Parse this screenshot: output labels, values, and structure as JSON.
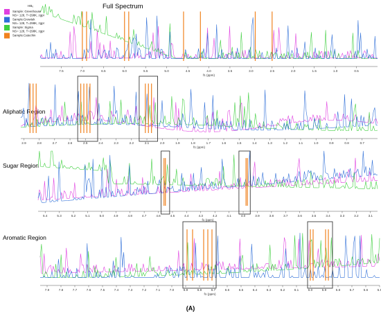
{
  "figure_label": "(A)",
  "legend": {
    "header": "HB₀",
    "entries": [
      {
        "lines": [
          "Sample: Greenhouse",
          "NS= 128, T=298K, zgpr"
        ],
        "color": "#e040e0"
      },
      {
        "lines": [
          "Sample:Growtek",
          "NS= 128, T=298K, zgpr"
        ],
        "color": "#2f6fd8"
      },
      {
        "lines": [
          "Sample: Sigma",
          "NS= 128, T=298K, zgpr"
        ],
        "color": "#3fcf3f"
      },
      {
        "lines": [
          "Sample:Catechin"
        ],
        "color": "#f0821e"
      }
    ]
  },
  "colors": {
    "greenhouse": "#e040e0",
    "growtek": "#2f6fd8",
    "sigma": "#3fcf3f",
    "catechin": "#f0821e",
    "axis": "#555555",
    "highlight_box": "#222222"
  },
  "chart_data": [
    {
      "type": "line",
      "title": "Full Spectrum",
      "xlabel": "f1 (ppm)",
      "x_reversed": true,
      "xlim": [
        8.0,
        0.0
      ],
      "tick_labels": [
        "7.5",
        "7.0",
        "6.5",
        "6.0",
        "5.5",
        "5.0",
        "4.5",
        "4.0",
        "3.5",
        "3.0",
        "2.5",
        "2.0",
        "1.5",
        "1.0",
        "0.5"
      ],
      "series": [
        "Greenhouse",
        "Growtek",
        "Sigma",
        "Catechin"
      ],
      "catechin_peaks": [
        7.0,
        6.9,
        6.0,
        5.9,
        4.6,
        4.2,
        2.9,
        2.5
      ]
    },
    {
      "type": "line",
      "title": "Aliphatic Region",
      "xlabel": "f1 (ppm)",
      "x_reversed": true,
      "xlim": [
        2.92,
        0.6
      ],
      "tick_labels": [
        "2.9",
        "2.8",
        "2.7",
        "2.6",
        "2.5",
        "2.4",
        "2.3",
        "2.2",
        "2.1",
        "2.0",
        "1.9",
        "1.8",
        "1.7",
        "1.6",
        "1.5",
        "1.4",
        "1.3",
        "1.2",
        "1.1",
        "1.0",
        "0.9",
        "0.8",
        "0.7"
      ],
      "highlight_boxes": [
        [
          2.55,
          2.42
        ],
        [
          2.15,
          2.03
        ]
      ],
      "catechin_peaks": [
        2.86,
        2.84,
        2.82,
        2.53,
        2.51,
        2.49,
        2.47,
        2.11,
        2.09,
        2.07
      ]
    },
    {
      "type": "line",
      "title": "Sugar Region",
      "xlabel": "f1 (ppm)",
      "x_reversed": true,
      "xlim": [
        5.45,
        3.05
      ],
      "tick_labels": [
        "5.4",
        "5.3",
        "5.2",
        "5.1",
        "5.0",
        "4.9",
        "4.8",
        "4.7",
        "4.6",
        "4.5",
        "4.4",
        "4.3",
        "4.2",
        "4.1",
        "4.0",
        "3.9",
        "3.8",
        "3.7",
        "3.6",
        "3.5",
        "3.4",
        "3.3",
        "3.2",
        "3.1"
      ],
      "highlight_boxes": [
        [
          4.58,
          4.52
        ],
        [
          4.03,
          3.95
        ]
      ],
      "catechin_peaks": [
        4.56,
        4.55,
        3.98,
        3.97
      ]
    },
    {
      "type": "line",
      "title": "Aromatic Region",
      "xlabel": "f1 (ppm)",
      "x_reversed": true,
      "xlim": [
        7.95,
        5.5
      ],
      "tick_labels": [
        "7.9",
        "7.8",
        "7.7",
        "7.6",
        "7.5",
        "7.4",
        "7.3",
        "7.2",
        "7.1",
        "7.0",
        "6.9",
        "6.8",
        "6.7",
        "6.6",
        "6.5",
        "6.4",
        "6.3",
        "6.2",
        "6.1",
        "6.0",
        "5.9",
        "5.8",
        "5.7",
        "5.6",
        "5.5"
      ],
      "highlight_boxes": [
        [
          6.92,
          6.68
        ],
        [
          6.02,
          5.84
        ]
      ],
      "catechin_peaks": [
        6.89,
        6.85,
        6.77,
        6.74,
        6.71,
        6.0,
        5.98,
        5.89,
        5.87
      ]
    }
  ]
}
